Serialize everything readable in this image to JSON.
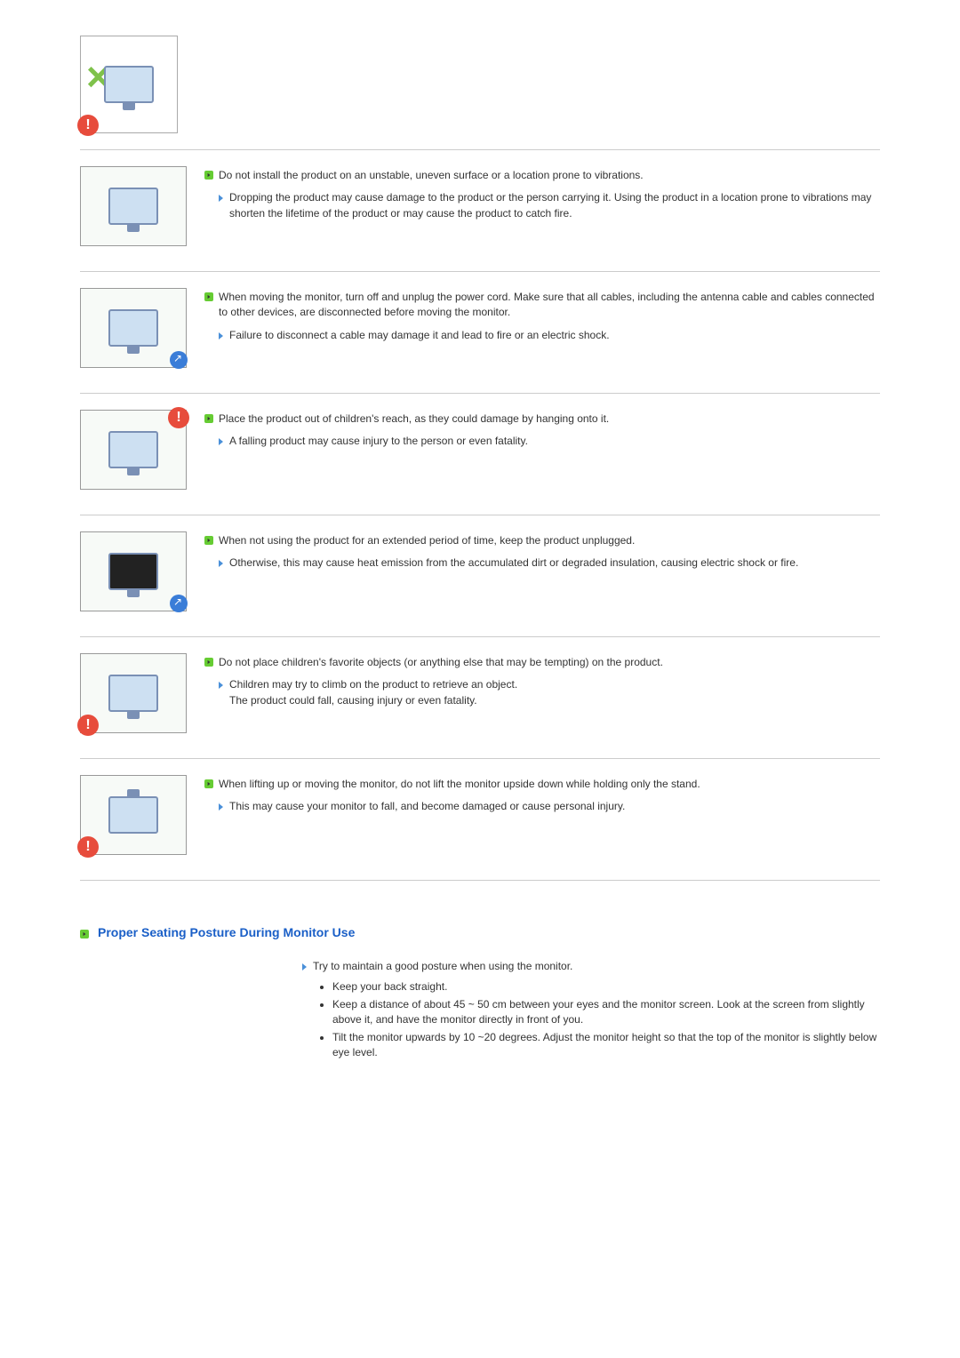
{
  "colors": {
    "text": "#333333",
    "heading": "#1a5fc7",
    "bullet_bg": "#66cc33",
    "arrow": "#4a90d9",
    "divider": "#cccccc",
    "warn_badge": "#e74c3c",
    "info_badge": "#3a7dd8",
    "green_x": "#7fc24b"
  },
  "typography": {
    "body_fontsize": 12,
    "heading_fontsize": 14,
    "heading_weight": "bold",
    "line_height": 1.45,
    "font_family": "Arial, Helvetica, sans-serif"
  },
  "items": [
    {
      "main": "Do not install the product on an unstable, uneven surface or a location prone to vibrations.",
      "sub": "Dropping the product may cause damage to the product or the person carrying it. Using the product in a location prone to vibrations may shorten the lifetime of the product or may cause the product to catch fire."
    },
    {
      "main": "When moving the monitor, turn off and unplug the power cord. Make sure that all cables, including the antenna cable and cables connected to other devices, are disconnected before moving the monitor.",
      "sub": "Failure to disconnect a cable may damage it and lead to fire or an electric shock."
    },
    {
      "main": "Place the product out of children's reach, as they could damage by hanging onto it.",
      "sub": "A falling product may cause injury to the person or even fatality."
    },
    {
      "main": "When not using the product for an extended period of time, keep the product unplugged.",
      "sub": "Otherwise, this may cause heat emission from the accumulated dirt or degraded insulation, causing electric shock or fire."
    },
    {
      "main": "Do not place children's favorite objects (or anything else that may be tempting) on the product.",
      "sub": "Children may try to climb on the product to retrieve an object.\nThe product could fall, causing injury or even fatality."
    },
    {
      "main": "When lifting up or moving the monitor, do not lift the monitor upside down while holding only the stand.",
      "sub": "This may cause your monitor to fall, and become damaged or cause personal injury."
    }
  ],
  "heading": "Proper Seating Posture During Monitor Use",
  "posture": {
    "intro": "Try to maintain a good posture when using the monitor.",
    "bullets": [
      "Keep your back straight.",
      "Keep a distance of about 45 ~ 50 cm between your eyes and the monitor screen. Look at the screen from slightly above it, and have the monitor directly in front of you.",
      "Tilt the monitor upwards by 10 ~20 degrees. Adjust the monitor height so that the top of the monitor is slightly below eye level."
    ]
  }
}
